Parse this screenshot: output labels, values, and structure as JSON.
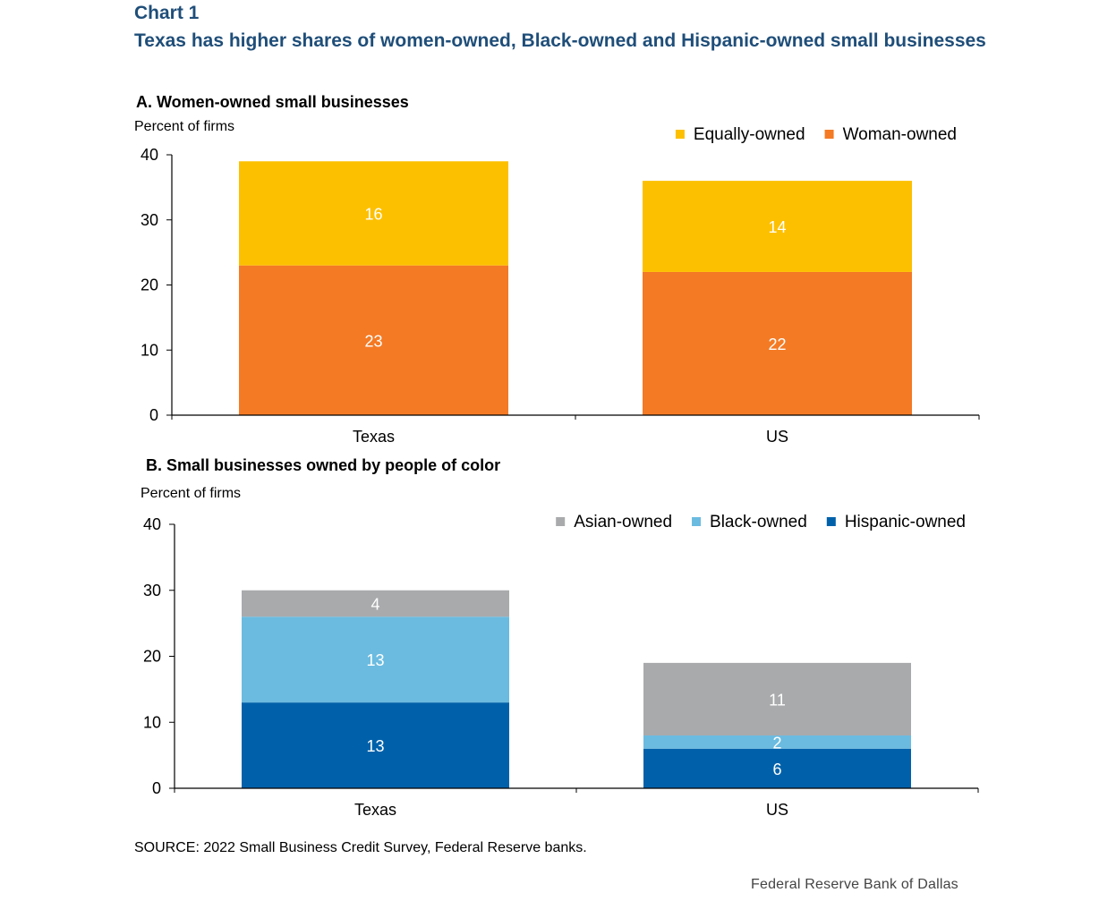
{
  "header": {
    "label": "Chart 1",
    "title": "Texas has higher shares of women-owned, Black-owned and Hispanic-owned small businesses"
  },
  "source": "SOURCE: 2022 Small Business Credit Survey, Federal Reserve banks.",
  "credit": "Federal Reserve Bank of Dallas",
  "chart_data": [
    {
      "type": "bar",
      "stacked": true,
      "title": "A. Women-owned small businesses",
      "ylabel": "Percent of firms",
      "xlabel": "",
      "categories": [
        "Texas",
        "US"
      ],
      "ylim": [
        0,
        40
      ],
      "yticks": [
        0,
        10,
        20,
        30,
        40
      ],
      "legend_position": "top-right",
      "grid": false,
      "series": [
        {
          "name": "Woman-owned",
          "values": [
            23,
            22
          ],
          "labels": [
            "23",
            "22"
          ],
          "color": "#f47a24"
        },
        {
          "name": "Equally-owned",
          "values": [
            16,
            14
          ],
          "labels": [
            "16",
            "14"
          ],
          "color": "#fdc000"
        }
      ],
      "legend_order": [
        "Equally-owned",
        "Woman-owned"
      ]
    },
    {
      "type": "bar",
      "stacked": true,
      "title": "B. Small businesses owned by people of color",
      "ylabel": "Percent of firms",
      "xlabel": "",
      "categories": [
        "Texas",
        "US"
      ],
      "ylim": [
        0,
        40
      ],
      "yticks": [
        0,
        10,
        20,
        30,
        40
      ],
      "legend_position": "top-right",
      "grid": false,
      "series": [
        {
          "name": "Hispanic-owned",
          "values": [
            13,
            6
          ],
          "labels": [
            "13",
            "6"
          ],
          "color": "#0061aa"
        },
        {
          "name": "Black-owned",
          "values": [
            13,
            2
          ],
          "labels": [
            "13",
            "2"
          ],
          "color": "#6bbbe0"
        },
        {
          "name": "Asian-owned",
          "values": [
            4,
            11
          ],
          "labels": [
            "4",
            "11"
          ],
          "color": "#a9aaac"
        }
      ],
      "legend_order": [
        "Asian-owned",
        "Black-owned",
        "Hispanic-owned"
      ]
    }
  ]
}
